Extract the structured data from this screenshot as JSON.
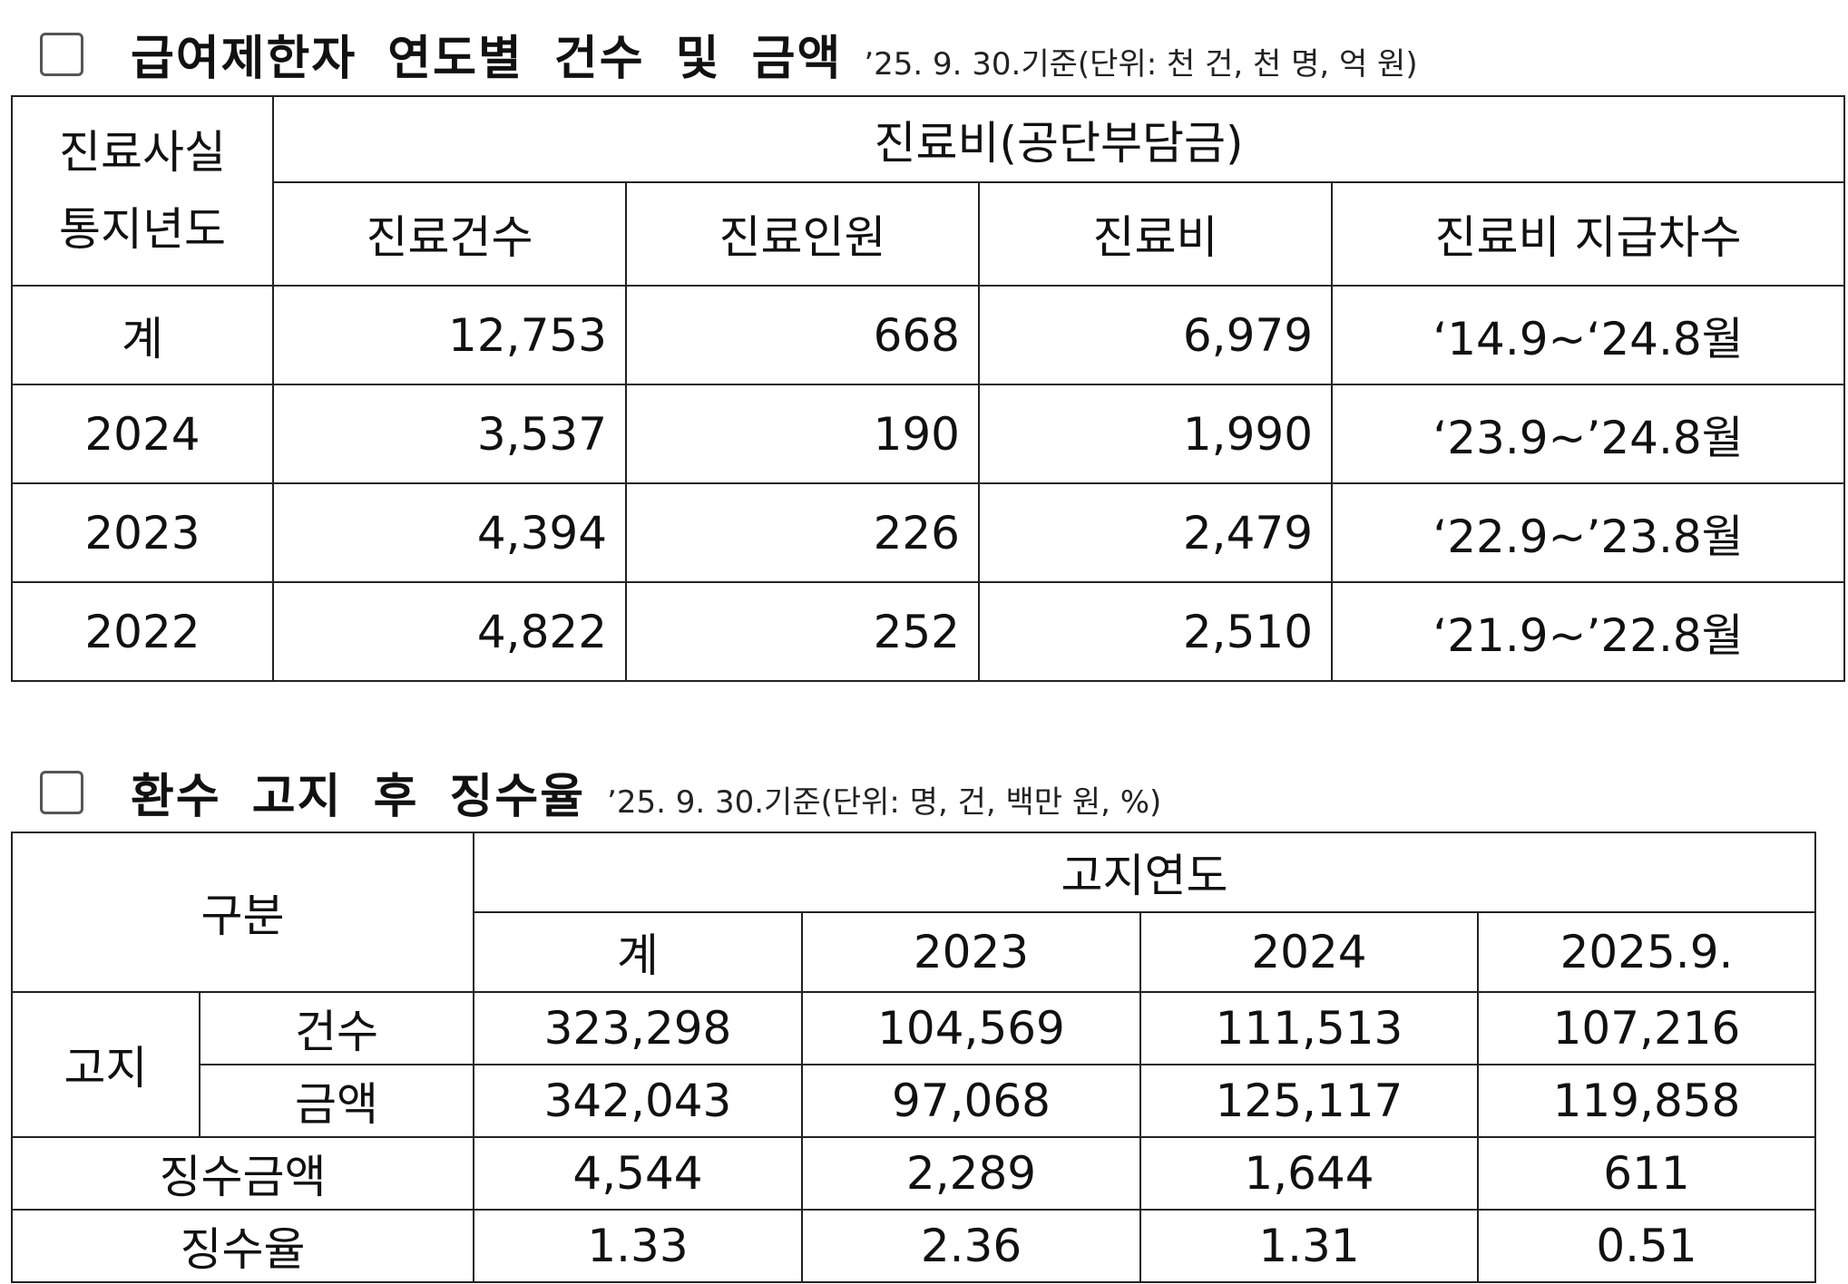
{
  "section1": {
    "title": "급여제한자 연도별 건수 및 금액",
    "note": "’25. 9. 30.기준(단위: 천 건, 천 명, 억 원)",
    "header": {
      "row_label_line1": "진료사실",
      "row_label_line2": "통지년도",
      "group": "진료비(공단부담금)",
      "columns": [
        "진료건수",
        "진료인원",
        "진료비",
        "진료비 지급차수"
      ]
    },
    "rows": [
      {
        "year": "계",
        "cases": "12,753",
        "people": "668",
        "cost": "6,979",
        "period": "‘14.9~‘24.8월"
      },
      {
        "year": "2024",
        "cases": "3,537",
        "people": "190",
        "cost": "1,990",
        "period": "‘23.9~’24.8월"
      },
      {
        "year": "2023",
        "cases": "4,394",
        "people": "226",
        "cost": "2,479",
        "period": "‘22.9~’23.8월"
      },
      {
        "year": "2022",
        "cases": "4,822",
        "people": "252",
        "cost": "2,510",
        "period": "‘21.9~’22.8월"
      }
    ]
  },
  "section2": {
    "title": "환수 고지 후 징수율",
    "note": "’25. 9. 30.기준(단위: 명, 건, 백만 원, %)",
    "header": {
      "category": "구분",
      "group": "고지연도",
      "columns": [
        "계",
        "2023",
        "2024",
        "2025.9."
      ]
    },
    "notice_label": "고지",
    "rows": [
      {
        "label": "건수",
        "values": [
          "323,298",
          "104,569",
          "111,513",
          "107,216"
        ]
      },
      {
        "label": "금액",
        "values": [
          "342,043",
          "97,068",
          "125,117",
          "119,858"
        ]
      },
      {
        "label": "징수금액",
        "values": [
          "4,544",
          "2,289",
          "1,644",
          "611"
        ]
      },
      {
        "label": "징수율",
        "values": [
          "1.33",
          "2.36",
          "1.31",
          "0.51"
        ]
      }
    ]
  }
}
